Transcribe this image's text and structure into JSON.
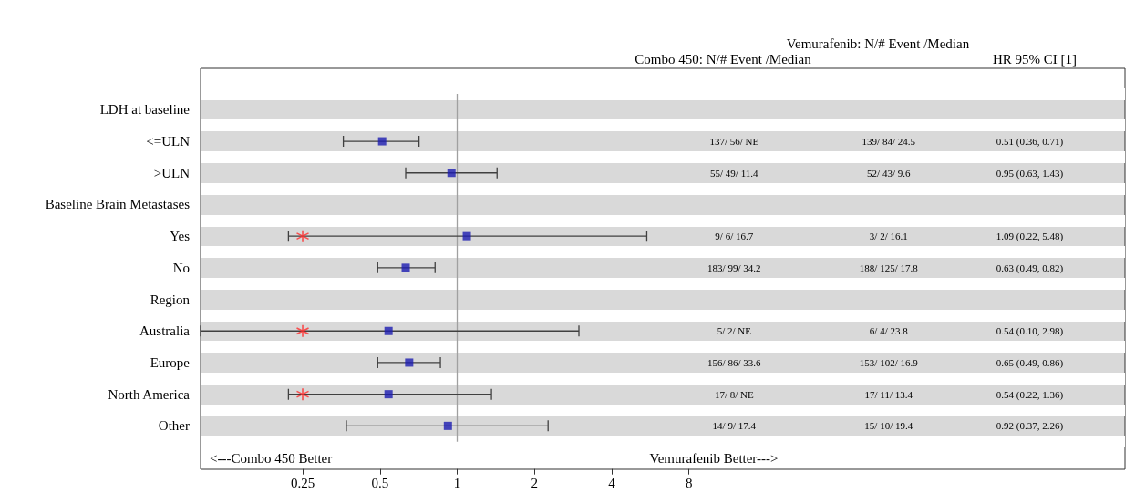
{
  "chart_data": {
    "type": "scatter",
    "orientation": "horizontal",
    "categories": [
      "LDH at baseline",
      "<=ULN",
      ">ULN",
      "Baseline Brain Metastases",
      "Yes",
      "No",
      "Region",
      "Australia",
      "Europe",
      "North America",
      "Other"
    ],
    "series": [
      {
        "color": "#1c1cb0",
        "marker": "square",
        "values": [
          null,
          0.51,
          0.95,
          null,
          1.09,
          0.63,
          null,
          0.54,
          0.65,
          0.54,
          0.92
        ],
        "errors": [
          null,
          [
            0.36,
            0.71
          ],
          [
            0.63,
            1.43
          ],
          null,
          [
            0.22,
            5.48
          ],
          [
            0.49,
            0.82
          ],
          null,
          [
            0.1,
            2.98
          ],
          [
            0.49,
            0.86
          ],
          [
            0.22,
            1.36
          ],
          [
            0.37,
            2.26
          ]
        ]
      },
      {
        "color": "#ff2a2a",
        "marker": "cross",
        "values": [
          null,
          null,
          null,
          null,
          0.25,
          null,
          null,
          0.25,
          null,
          0.25,
          null
        ]
      }
    ],
    "xlim": [
      0.1,
      400
    ],
    "xticks": [
      0.25,
      0.5,
      1,
      2,
      4,
      8
    ],
    "log": "x",
    "ref_lines": [
      {
        "axis": "x",
        "value": 1,
        "color": "#a0a0a0"
      }
    ],
    "annotations": [
      "Vemurafenib: N/# Event /Median",
      "Combo 450: N/# Event /Median",
      "HR 95% CI [1]",
      "<---Combo 450 Better",
      "Vemurafenib Better--->",
      "137/ 56/ NE",
      "139/ 84/ 24.5",
      "0.51 (0.36, 0.71)",
      "55/ 49/ 11.4",
      "52/ 43/ 9.6",
      "0.95 (0.63, 1.43)",
      "9/ 6/ 16.7",
      "3/ 2/ 16.1",
      "1.09 (0.22, 5.48)",
      "183/ 99/ 34.2",
      "188/ 125/ 17.8",
      "0.63 (0.49, 0.82)",
      "5/ 2/ NE",
      "6/ 4/ 23.8",
      "0.54 (0.10, 2.98)",
      "156/ 86/ 33.6",
      "153/ 102/ 16.9",
      "0.65 (0.49, 0.86)",
      "17/ 8/ NE",
      "17/ 11/ 13.4",
      "0.54 (0.22, 1.36)",
      "14/ 9/ 17.4",
      "15/ 10/ 19.4",
      "0.92 (0.37, 2.26)"
    ]
  }
}
